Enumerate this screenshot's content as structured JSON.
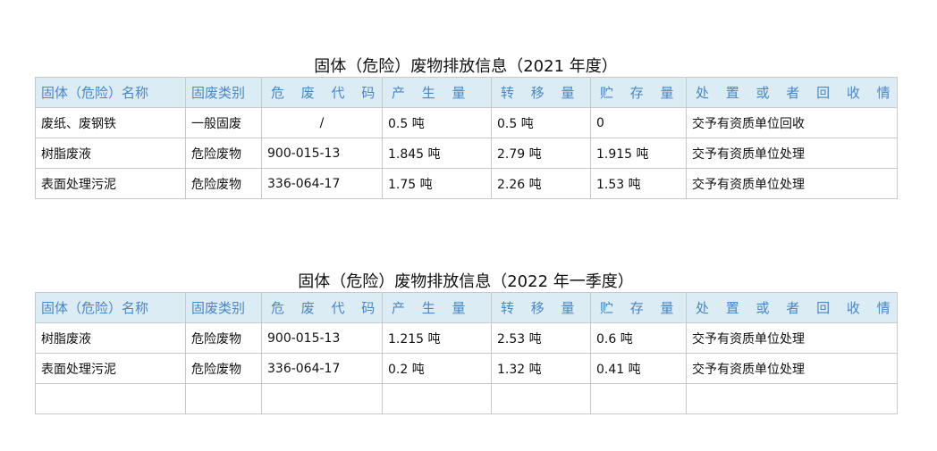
{
  "tables": [
    {
      "title": "固体（危险）废物排放信息（2021 年度）",
      "headers": [
        "固体（危险）名称",
        "固废类别",
        "危 废 代 码",
        "产 生 量",
        "转 移 量",
        "贮 存 量",
        "处 置 或 者 回 收 情 况"
      ],
      "rows": [
        [
          "废纸、废钢铁",
          "一般固废",
          "/",
          "0.5 吨",
          "0.5 吨",
          "0",
          "交予有资质单位回收"
        ],
        [
          "树脂废液",
          "危险废物",
          "900-015-13",
          "1.845 吨",
          "2.79 吨",
          "1.915 吨",
          "交予有资质单位处理"
        ],
        [
          "表面处理污泥",
          "危险废物",
          "336-064-17",
          "1.75 吨",
          "2.26 吨",
          "1.53 吨",
          "交予有资质单位处理"
        ]
      ]
    },
    {
      "title": "固体（危险）废物排放信息（2022 年一季度）",
      "headers": [
        "固体（危险）名称",
        "固废类别",
        "危 废 代 码",
        "产 生 量",
        "转 移 量",
        "贮 存 量",
        "处 置 或 者 回 收 情 况"
      ],
      "rows": [
        [
          "树脂废液",
          "危险废物",
          "900-015-13",
          "1.215 吨",
          "2.53 吨",
          "0.6 吨",
          "交予有资质单位处理"
        ],
        [
          "表面处理污泥",
          "危险废物",
          "336-064-17",
          "0.2 吨",
          "1.32 吨",
          "0.41 吨",
          "交予有资质单位处理"
        ],
        [
          "",
          "",
          "",
          "",
          "",
          "",
          ""
        ]
      ]
    }
  ]
}
